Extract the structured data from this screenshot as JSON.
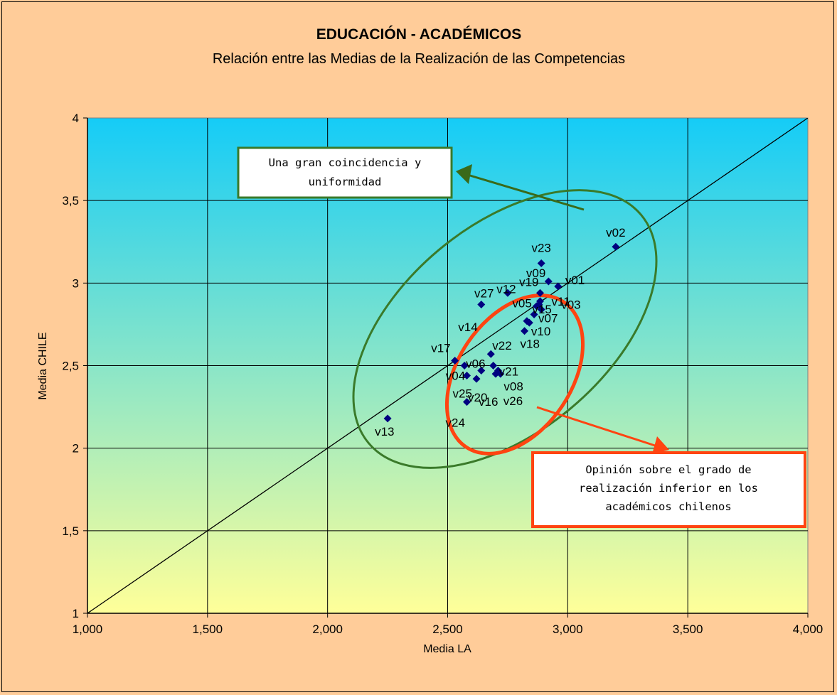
{
  "chart_data": {
    "type": "scatter",
    "title": "EDUCACIÓN - ACADÉMICOS",
    "subtitle": "Relación entre las Medias de la Realización de las Competencias",
    "xlabel": "Media LA",
    "ylabel": "Media CHILE",
    "xlim": [
      1.0,
      4.0
    ],
    "ylim": [
      1.0,
      4.0
    ],
    "x_ticks": [
      "1,000",
      "1,500",
      "2,000",
      "2,500",
      "3,000",
      "3,500",
      "4,000"
    ],
    "y_ticks": [
      "1",
      "1,5",
      "2",
      "2,5",
      "3",
      "3,5",
      "4"
    ],
    "grid": true,
    "reference_line": {
      "from": [
        1.0,
        1.0
      ],
      "to": [
        4.0,
        4.0
      ]
    },
    "background_gradient": [
      "#15ccf7",
      "#ffff99"
    ],
    "point_color": "#000080",
    "points": [
      {
        "label": "v02",
        "x": 3.2,
        "y": 3.22
      },
      {
        "label": "v23",
        "x": 2.89,
        "y": 3.12
      },
      {
        "label": "v01",
        "x": 2.96,
        "y": 2.98
      },
      {
        "label": "v09",
        "x": 2.92,
        "y": 3.01
      },
      {
        "label": "v19",
        "x": 2.885,
        "y": 2.94
      },
      {
        "label": "v11",
        "x": 2.885,
        "y": 2.89
      },
      {
        "label": "v27",
        "x": 2.64,
        "y": 2.87
      },
      {
        "label": "v12",
        "x": 2.75,
        "y": 2.94
      },
      {
        "label": "v05",
        "x": 2.88,
        "y": 2.87
      },
      {
        "label": "v15",
        "x": 2.87,
        "y": 2.86
      },
      {
        "label": "v03",
        "x": 2.89,
        "y": 2.84
      },
      {
        "label": "v07",
        "x": 2.86,
        "y": 2.81
      },
      {
        "label": "v10",
        "x": 2.83,
        "y": 2.77
      },
      {
        "label": "v14",
        "x": 2.84,
        "y": 2.76
      },
      {
        "label": "v18",
        "x": 2.82,
        "y": 2.71
      },
      {
        "label": "v17",
        "x": 2.53,
        "y": 2.53
      },
      {
        "label": "v06",
        "x": 2.57,
        "y": 2.5
      },
      {
        "label": "v22",
        "x": 2.68,
        "y": 2.57
      },
      {
        "label": "v21",
        "x": 2.69,
        "y": 2.5
      },
      {
        "label": "v08",
        "x": 2.71,
        "y": 2.47
      },
      {
        "label": "v04",
        "x": 2.64,
        "y": 2.47
      },
      {
        "label": "v25",
        "x": 2.58,
        "y": 2.44
      },
      {
        "label": "v20",
        "x": 2.62,
        "y": 2.42
      },
      {
        "label": "v16",
        "x": 2.7,
        "y": 2.45
      },
      {
        "label": "v26",
        "x": 2.72,
        "y": 2.45
      },
      {
        "label": "v24",
        "x": 2.58,
        "y": 2.28
      },
      {
        "label": "v13",
        "x": 2.25,
        "y": 2.18
      }
    ],
    "annotations": [
      {
        "id": "green",
        "lines": [
          "Una gran coincidencia y",
          "uniformidad"
        ],
        "color": "#3a7a2a"
      },
      {
        "id": "red",
        "lines": [
          "Opinión sobre el grado de",
          "realización inferior en los",
          "académicos chilenos"
        ],
        "color": "#ff4411"
      }
    ]
  }
}
